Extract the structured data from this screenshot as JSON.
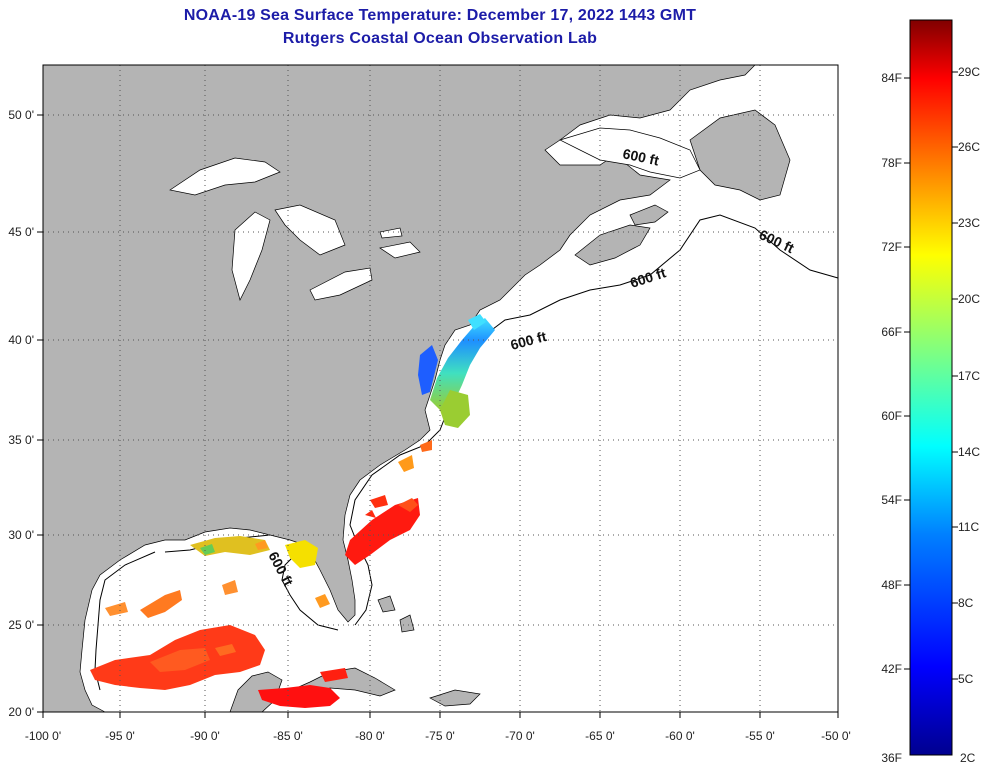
{
  "header": {
    "title": "NOAA-19 Sea Surface Temperature:  December 17, 2022 1443 GMT",
    "subtitle": "Rutgers Coastal Ocean Observation Lab"
  },
  "map": {
    "lon_labels": [
      "-100 0'",
      "-95 0'",
      "-90 0'",
      "-85 0'",
      "-80 0'",
      "-75 0'",
      "-70 0'",
      "-65 0'",
      "-60 0'",
      "-55 0'",
      "-50 0'"
    ],
    "lat_labels": [
      "50 0'",
      "45 0'",
      "40 0'",
      "35 0'",
      "30 0'",
      "25 0'",
      "20 0'"
    ],
    "isobath_labels": [
      "600 ft",
      "600 ft",
      "600 ft",
      "600 ft",
      "600 ft"
    ],
    "colors": {
      "land": "#b4b4b4",
      "ocean": "#ffffff",
      "grid": "#555555"
    }
  },
  "colorbar": {
    "fahrenheit_labels": [
      "84F",
      "78F",
      "72F",
      "66F",
      "60F",
      "54F",
      "48F",
      "42F",
      "36F"
    ],
    "celsius_labels": [
      "29C",
      "26C",
      "23C",
      "20C",
      "17C",
      "14C",
      "11C",
      "8C",
      "5C",
      "2C"
    ]
  }
}
